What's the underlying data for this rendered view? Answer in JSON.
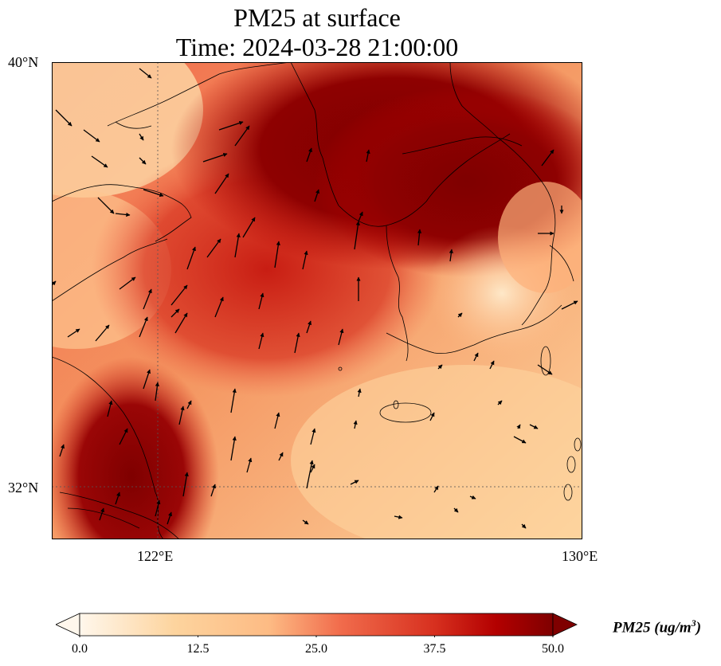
{
  "title": {
    "line1": "PM25 at surface",
    "line2": "Time: 2024-03-28 21:00:00"
  },
  "axes": {
    "lat_labels": [
      "40°N",
      "32°N"
    ],
    "lon_labels": [
      "122°E",
      "130°E"
    ],
    "lat_range": [
      31,
      40
    ],
    "lon_range": [
      120,
      130
    ]
  },
  "colorbar": {
    "label": "PM25 (ug/m",
    "label_sup": "3",
    "label_end": ")",
    "ticks": [
      "0.0",
      "12.5",
      "25.0",
      "37.5",
      "50.0"
    ],
    "range": [
      0,
      50
    ],
    "colormap": "OrRd",
    "extend": "both"
  },
  "colors": {
    "low": "#fff7ec",
    "mid": "#fc8d59",
    "high": "#7f0000"
  }
}
